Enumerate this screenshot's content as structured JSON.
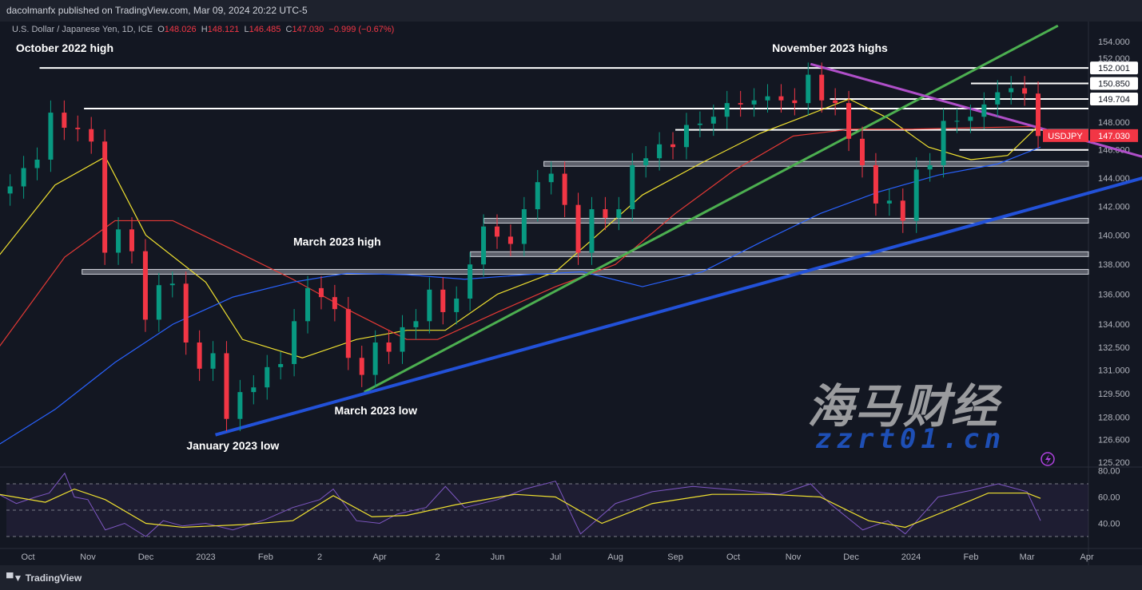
{
  "header": {
    "published": "dacolmanfx published on TradingView.com, Mar 09, 2024 20:22 UTC-5",
    "symbol_desc": "U.S. Dollar / Japanese Yen, 1D, ICE",
    "open_label": "O",
    "open": "148.026",
    "high_label": "H",
    "high": "148.121",
    "low_label": "L",
    "low": "146.485",
    "close_label": "C",
    "close": "147.030",
    "change": "−0.999 (−0.67%)"
  },
  "footer": {
    "logo_text": "TradingView"
  },
  "watermark": {
    "line1": "海马财经",
    "line2": "zzrt01.cn"
  },
  "colors": {
    "background": "#131722",
    "up": "#089981",
    "down": "#f23645",
    "ma50": "#f0e130",
    "ma100": "#e53935",
    "ma200": "#2962ff",
    "rsi": "#7e57c2",
    "rsi_ma": "#f0e130",
    "trend_green": "#4caf50",
    "trend_blue": "#2251d8",
    "trend_purple": "#b04fc9"
  },
  "chart_data": {
    "type": "candlestick",
    "symbol": "USDJPY",
    "last_price": "147.030",
    "price_scale": "log",
    "ylim": [
      125.2,
      155
    ],
    "y_ticks": [
      "154.000",
      "152.000",
      "148.000",
      "146.000",
      "144.000",
      "142.000",
      "140.000",
      "138.000",
      "136.000",
      "134.000",
      "132.500",
      "131.000",
      "129.500",
      "128.000",
      "126.600",
      "125.200"
    ],
    "x_ticks": [
      {
        "date": "2022-10-01",
        "label": "Oct"
      },
      {
        "date": "2022-11-01",
        "label": "Nov"
      },
      {
        "date": "2022-12-01",
        "label": "Dec"
      },
      {
        "date": "2023-01-01",
        "label": "2023"
      },
      {
        "date": "2023-02-01",
        "label": "Feb"
      },
      {
        "date": "2023-03-01",
        "label": "2"
      },
      {
        "date": "2023-04-01",
        "label": "Apr"
      },
      {
        "date": "2023-05-01",
        "label": "2"
      },
      {
        "date": "2023-06-01",
        "label": "Jun"
      },
      {
        "date": "2023-07-01",
        "label": "Jul"
      },
      {
        "date": "2023-08-01",
        "label": "Aug"
      },
      {
        "date": "2023-09-01",
        "label": "Sep"
      },
      {
        "date": "2023-10-01",
        "label": "Oct"
      },
      {
        "date": "2023-11-01",
        "label": "Nov"
      },
      {
        "date": "2023-12-01",
        "label": "Dec"
      },
      {
        "date": "2024-01-01",
        "label": "2024"
      },
      {
        "date": "2024-02-01",
        "label": "Feb"
      },
      {
        "date": "2024-03-01",
        "label": "Mar"
      },
      {
        "date": "2024-04-01",
        "label": "Apr"
      }
    ],
    "closes": [
      [
        "2022-09-16",
        142.9
      ],
      [
        "2022-09-23",
        143.4
      ],
      [
        "2022-09-30",
        144.7
      ],
      [
        "2022-10-07",
        145.3
      ],
      [
        "2022-10-14",
        148.7
      ],
      [
        "2022-10-21",
        147.6
      ],
      [
        "2022-10-28",
        147.5
      ],
      [
        "2022-11-04",
        146.6
      ],
      [
        "2022-11-11",
        138.8
      ],
      [
        "2022-11-18",
        140.4
      ],
      [
        "2022-11-25",
        138.9
      ],
      [
        "2022-12-02",
        134.3
      ],
      [
        "2022-12-09",
        136.6
      ],
      [
        "2022-12-16",
        136.7
      ],
      [
        "2022-12-23",
        132.8
      ],
      [
        "2022-12-30",
        131.1
      ],
      [
        "2023-01-06",
        132.1
      ],
      [
        "2023-01-13",
        127.9
      ],
      [
        "2023-01-20",
        129.6
      ],
      [
        "2023-01-27",
        129.9
      ],
      [
        "2023-02-03",
        131.2
      ],
      [
        "2023-02-10",
        131.4
      ],
      [
        "2023-02-17",
        134.2
      ],
      [
        "2023-02-24",
        136.4
      ],
      [
        "2023-03-03",
        135.8
      ],
      [
        "2023-03-10",
        135.0
      ],
      [
        "2023-03-17",
        131.8
      ],
      [
        "2023-03-24",
        130.7
      ],
      [
        "2023-03-31",
        132.8
      ],
      [
        "2023-04-07",
        132.2
      ],
      [
        "2023-04-14",
        133.8
      ],
      [
        "2023-04-21",
        134.2
      ],
      [
        "2023-04-28",
        136.3
      ],
      [
        "2023-05-05",
        134.8
      ],
      [
        "2023-05-12",
        135.7
      ],
      [
        "2023-05-19",
        138.0
      ],
      [
        "2023-05-26",
        140.6
      ],
      [
        "2023-06-02",
        139.9
      ],
      [
        "2023-06-09",
        139.4
      ],
      [
        "2023-06-16",
        141.8
      ],
      [
        "2023-06-23",
        143.7
      ],
      [
        "2023-06-30",
        144.3
      ],
      [
        "2023-07-07",
        142.1
      ],
      [
        "2023-07-14",
        138.8
      ],
      [
        "2023-07-21",
        141.8
      ],
      [
        "2023-07-28",
        141.2
      ],
      [
        "2023-08-04",
        141.8
      ],
      [
        "2023-08-11",
        144.9
      ],
      [
        "2023-08-18",
        145.4
      ],
      [
        "2023-08-25",
        146.4
      ],
      [
        "2023-09-01",
        146.2
      ],
      [
        "2023-09-08",
        147.8
      ],
      [
        "2023-09-15",
        147.9
      ],
      [
        "2023-09-22",
        148.4
      ],
      [
        "2023-09-29",
        149.4
      ],
      [
        "2023-10-06",
        149.3
      ],
      [
        "2023-10-13",
        149.6
      ],
      [
        "2023-10-20",
        149.9
      ],
      [
        "2023-10-27",
        149.6
      ],
      [
        "2023-11-03",
        149.4
      ],
      [
        "2023-11-10",
        151.5
      ],
      [
        "2023-11-17",
        149.6
      ],
      [
        "2023-11-24",
        149.4
      ],
      [
        "2023-12-01",
        146.8
      ],
      [
        "2023-12-08",
        144.9
      ],
      [
        "2023-12-15",
        142.2
      ],
      [
        "2023-12-22",
        142.4
      ],
      [
        "2023-12-29",
        141.0
      ],
      [
        "2024-01-05",
        144.6
      ],
      [
        "2024-01-12",
        144.9
      ],
      [
        "2024-01-19",
        148.1
      ],
      [
        "2024-01-26",
        148.1
      ],
      [
        "2024-02-02",
        148.4
      ],
      [
        "2024-02-09",
        149.3
      ],
      [
        "2024-02-16",
        150.2
      ],
      [
        "2024-02-23",
        150.5
      ],
      [
        "2024-03-01",
        150.1
      ],
      [
        "2024-03-08",
        147.0
      ]
    ],
    "moving_averages": [
      {
        "key": "ma50",
        "points": [
          [
            "2022-09-16",
            138.6
          ],
          [
            "2022-10-15",
            143.5
          ],
          [
            "2022-11-10",
            145.5
          ],
          [
            "2022-12-01",
            140.0
          ],
          [
            "2023-01-01",
            136.8
          ],
          [
            "2023-01-20",
            133.0
          ],
          [
            "2023-02-20",
            131.8
          ],
          [
            "2023-03-20",
            133.0
          ],
          [
            "2023-04-15",
            133.6
          ],
          [
            "2023-05-05",
            133.6
          ],
          [
            "2023-06-01",
            136.0
          ],
          [
            "2023-07-01",
            137.5
          ],
          [
            "2023-07-20",
            139.7
          ],
          [
            "2023-08-15",
            142.8
          ],
          [
            "2023-09-15",
            145.1
          ],
          [
            "2023-10-15",
            147.2
          ],
          [
            "2023-11-10",
            148.6
          ],
          [
            "2023-11-30",
            149.7
          ],
          [
            "2023-12-20",
            148.3
          ],
          [
            "2024-01-10",
            146.2
          ],
          [
            "2024-02-01",
            145.3
          ],
          [
            "2024-02-20",
            145.6
          ],
          [
            "2024-03-08",
            147.9
          ]
        ]
      },
      {
        "key": "ma100",
        "points": [
          [
            "2022-09-16",
            132.5
          ],
          [
            "2022-10-20",
            138.5
          ],
          [
            "2022-11-15",
            141.0
          ],
          [
            "2022-12-15",
            141.0
          ],
          [
            "2023-01-15",
            139.0
          ],
          [
            "2023-02-15",
            137.0
          ],
          [
            "2023-03-15",
            135.0
          ],
          [
            "2023-04-15",
            133.0
          ],
          [
            "2023-05-01",
            133.0
          ],
          [
            "2023-06-01",
            134.8
          ],
          [
            "2023-07-01",
            136.5
          ],
          [
            "2023-08-01",
            138.0
          ],
          [
            "2023-09-01",
            141.5
          ],
          [
            "2023-10-01",
            144.5
          ],
          [
            "2023-11-01",
            147.0
          ],
          [
            "2023-12-01",
            147.5
          ],
          [
            "2024-01-01",
            147.5
          ],
          [
            "2024-03-08",
            147.7
          ]
        ]
      },
      {
        "key": "ma200",
        "points": [
          [
            "2022-09-16",
            126.3
          ],
          [
            "2022-10-15",
            128.5
          ],
          [
            "2022-11-15",
            131.5
          ],
          [
            "2022-12-15",
            134.0
          ],
          [
            "2023-01-15",
            135.8
          ],
          [
            "2023-02-15",
            136.8
          ],
          [
            "2023-03-15",
            137.4
          ],
          [
            "2023-04-15",
            137.3
          ],
          [
            "2023-05-15",
            137.0
          ],
          [
            "2023-06-15",
            137.3
          ],
          [
            "2023-07-15",
            137.5
          ],
          [
            "2023-08-15",
            136.5
          ],
          [
            "2023-09-15",
            137.5
          ],
          [
            "2023-10-15",
            139.5
          ],
          [
            "2023-11-15",
            141.5
          ],
          [
            "2023-12-15",
            143.0
          ],
          [
            "2024-01-15",
            144.2
          ],
          [
            "2024-02-15",
            145.0
          ],
          [
            "2024-03-08",
            146.2
          ]
        ]
      }
    ],
    "horizontal_levels": [
      {
        "price": 152.001,
        "from": "2022-10-07",
        "label": "152.001",
        "style": "line"
      },
      {
        "price": 150.85,
        "from": "2024-02-01",
        "label": "150.850",
        "style": "line"
      },
      {
        "price": 149.704,
        "from": "2023-11-20",
        "label": "149.704",
        "style": "line"
      },
      {
        "price": 149.0,
        "from": "2022-10-30",
        "style": "line"
      },
      {
        "price": 147.45,
        "from": "2023-09-01",
        "style": "line"
      },
      {
        "price": 146.0,
        "from": "2024-01-26",
        "style": "line"
      },
      {
        "price": 145.0,
        "from": "2023-06-25",
        "style": "band"
      },
      {
        "price": 141.0,
        "from": "2023-05-25",
        "style": "band"
      },
      {
        "price": 138.7,
        "from": "2023-05-18",
        "style": "band"
      },
      {
        "price": 137.5,
        "from": "2022-10-29",
        "style": "band"
      }
    ],
    "trendlines": [
      {
        "key": "trend_green",
        "from": [
          "2023-03-24",
          129.6
        ],
        "to": [
          "2024-03-17",
          155.2
        ]
      },
      {
        "key": "trend_blue",
        "from": [
          "2023-01-06",
          126.9
        ],
        "to": [
          "2024-04-30",
          144.0
        ]
      },
      {
        "key": "trend_purple",
        "from": [
          "2023-11-10",
          152.3
        ],
        "to": [
          "2024-04-30",
          145.5
        ]
      }
    ],
    "annotations": [
      {
        "text": "October 2022 high",
        "date": "2022-10-20",
        "price": 153.2
      },
      {
        "text": "November 2023 highs",
        "date": "2023-11-20",
        "price": 153.2
      },
      {
        "text": "March 2023 high",
        "date": "2023-03-10",
        "price": 139.3
      },
      {
        "text": "March 2023 low",
        "date": "2023-03-30",
        "price": 128.2
      },
      {
        "text": "January 2023 low",
        "date": "2023-01-15",
        "price": 126.0
      }
    ],
    "rsi": {
      "y_ticks": [
        "80.00",
        "60.00",
        "40.00"
      ],
      "levels": [
        70,
        50,
        30
      ],
      "values": [
        [
          "2022-09-16",
          62
        ],
        [
          "2022-09-25",
          55
        ],
        [
          "2022-10-05",
          60
        ],
        [
          "2022-10-12",
          63
        ],
        [
          "2022-10-20",
          78
        ],
        [
          "2022-10-25",
          60
        ],
        [
          "2022-11-01",
          58
        ],
        [
          "2022-11-10",
          35
        ],
        [
          "2022-11-20",
          40
        ],
        [
          "2022-12-01",
          30
        ],
        [
          "2022-12-10",
          42
        ],
        [
          "2022-12-20",
          38
        ],
        [
          "2023-01-01",
          40
        ],
        [
          "2023-01-15",
          35
        ],
        [
          "2023-02-01",
          43
        ],
        [
          "2023-02-15",
          52
        ],
        [
          "2023-03-01",
          58
        ],
        [
          "2023-03-08",
          66
        ],
        [
          "2023-03-20",
          42
        ],
        [
          "2023-04-01",
          40
        ],
        [
          "2023-04-10",
          47
        ],
        [
          "2023-04-25",
          52
        ],
        [
          "2023-05-05",
          68
        ],
        [
          "2023-05-15",
          52
        ],
        [
          "2023-06-01",
          58
        ],
        [
          "2023-06-15",
          66
        ],
        [
          "2023-07-01",
          72
        ],
        [
          "2023-07-14",
          32
        ],
        [
          "2023-08-01",
          55
        ],
        [
          "2023-08-20",
          64
        ],
        [
          "2023-09-10",
          68
        ],
        [
          "2023-10-05",
          65
        ],
        [
          "2023-10-25",
          62
        ],
        [
          "2023-11-10",
          70
        ],
        [
          "2023-11-20",
          55
        ],
        [
          "2023-12-07",
          35
        ],
        [
          "2023-12-20",
          42
        ],
        [
          "2023-12-29",
          32
        ],
        [
          "2024-01-15",
          60
        ],
        [
          "2024-02-01",
          65
        ],
        [
          "2024-02-15",
          70
        ],
        [
          "2024-03-01",
          64
        ],
        [
          "2024-03-08",
          42
        ]
      ],
      "ma_values": [
        [
          "2022-09-16",
          62
        ],
        [
          "2022-10-10",
          56
        ],
        [
          "2022-10-25",
          66
        ],
        [
          "2022-11-10",
          58
        ],
        [
          "2022-12-01",
          40
        ],
        [
          "2022-12-20",
          37
        ],
        [
          "2023-01-20",
          39
        ],
        [
          "2023-02-15",
          42
        ],
        [
          "2023-03-08",
          61
        ],
        [
          "2023-03-28",
          45
        ],
        [
          "2023-04-15",
          46
        ],
        [
          "2023-05-10",
          54
        ],
        [
          "2023-06-10",
          62
        ],
        [
          "2023-07-01",
          60
        ],
        [
          "2023-07-25",
          40
        ],
        [
          "2023-08-20",
          55
        ],
        [
          "2023-09-20",
          62
        ],
        [
          "2023-10-20",
          62
        ],
        [
          "2023-11-15",
          60
        ],
        [
          "2023-12-10",
          42
        ],
        [
          "2023-12-29",
          37
        ],
        [
          "2024-01-20",
          50
        ],
        [
          "2024-02-10",
          63
        ],
        [
          "2024-03-01",
          63
        ],
        [
          "2024-03-08",
          59
        ]
      ]
    }
  }
}
